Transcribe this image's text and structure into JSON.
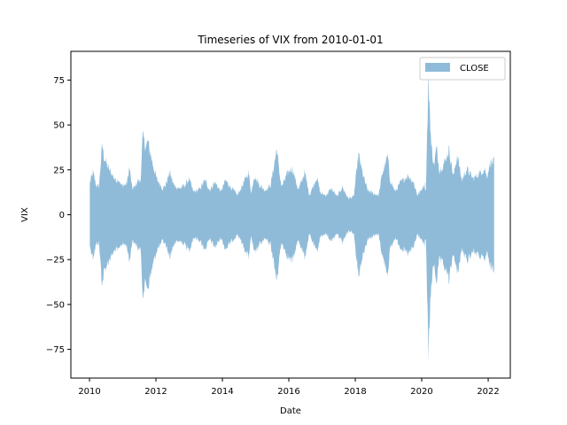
{
  "chart_data": {
    "type": "area",
    "title": "Timeseries of VIX from 2010-01-01",
    "xlabel": "Date",
    "ylabel": "VIX",
    "xlim": [
      "2009-06-10",
      "2022-09-01"
    ],
    "ylim": [
      -91,
      91
    ],
    "x_ticks": [
      "2010",
      "2012",
      "2014",
      "2016",
      "2018",
      "2020",
      "2022"
    ],
    "y_ticks": [
      -75,
      -50,
      -25,
      0,
      25,
      50,
      75
    ],
    "legend_position": "top-right",
    "grid": false,
    "series": [
      {
        "name": "CLOSE",
        "color": "#1f77b4",
        "opacity": 0.5,
        "mirrored": true,
        "points": [
          [
            "2010-01-04",
            19
          ],
          [
            "2010-02-08",
            26
          ],
          [
            "2010-03-15",
            18
          ],
          [
            "2010-04-15",
            17
          ],
          [
            "2010-05-20",
            43
          ],
          [
            "2010-06-10",
            35
          ],
          [
            "2010-07-15",
            30
          ],
          [
            "2010-08-20",
            26
          ],
          [
            "2010-09-15",
            24
          ],
          [
            "2010-10-15",
            21
          ],
          [
            "2010-11-15",
            22
          ],
          [
            "2010-12-15",
            18
          ],
          [
            "2011-01-15",
            18
          ],
          [
            "2011-02-15",
            19
          ],
          [
            "2011-03-16",
            29
          ],
          [
            "2011-04-15",
            16
          ],
          [
            "2011-05-15",
            17
          ],
          [
            "2011-06-15",
            21
          ],
          [
            "2011-07-15",
            20
          ],
          [
            "2011-08-08",
            48
          ],
          [
            "2011-09-15",
            41
          ],
          [
            "2011-10-03",
            45
          ],
          [
            "2011-11-15",
            34
          ],
          [
            "2011-12-15",
            27
          ],
          [
            "2012-01-15",
            21
          ],
          [
            "2012-02-15",
            19
          ],
          [
            "2012-03-15",
            16
          ],
          [
            "2012-04-15",
            18
          ],
          [
            "2012-06-01",
            26
          ],
          [
            "2012-07-15",
            18
          ],
          [
            "2012-09-15",
            16
          ],
          [
            "2012-11-15",
            18
          ],
          [
            "2012-12-31",
            22
          ],
          [
            "2013-02-15",
            14
          ],
          [
            "2013-04-15",
            15
          ],
          [
            "2013-06-24",
            21
          ],
          [
            "2013-08-15",
            15
          ],
          [
            "2013-10-10",
            20
          ],
          [
            "2013-12-15",
            14
          ],
          [
            "2014-02-04",
            21
          ],
          [
            "2014-04-15",
            16
          ],
          [
            "2014-06-15",
            12
          ],
          [
            "2014-08-01",
            17
          ],
          [
            "2014-10-15",
            26
          ],
          [
            "2014-11-15",
            13
          ],
          [
            "2014-12-16",
            24
          ],
          [
            "2015-02-15",
            18
          ],
          [
            "2015-04-15",
            15
          ],
          [
            "2015-06-15",
            18
          ],
          [
            "2015-08-24",
            41
          ],
          [
            "2015-09-15",
            27
          ],
          [
            "2015-10-15",
            17
          ],
          [
            "2015-12-15",
            25
          ],
          [
            "2016-01-20",
            28
          ],
          [
            "2016-02-11",
            28
          ],
          [
            "2016-04-15",
            15
          ],
          [
            "2016-06-24",
            26
          ],
          [
            "2016-08-15",
            12
          ],
          [
            "2016-11-04",
            23
          ],
          [
            "2016-12-15",
            13
          ],
          [
            "2017-02-15",
            12
          ],
          [
            "2017-04-13",
            16
          ],
          [
            "2017-06-15",
            11
          ],
          [
            "2017-08-10",
            17
          ],
          [
            "2017-10-15",
            10
          ],
          [
            "2017-12-15",
            11
          ],
          [
            "2018-02-05",
            37
          ],
          [
            "2018-03-23",
            25
          ],
          [
            "2018-05-15",
            15
          ],
          [
            "2018-07-15",
            13
          ],
          [
            "2018-09-15",
            12
          ],
          [
            "2018-10-24",
            25
          ],
          [
            "2018-12-24",
            36
          ],
          [
            "2019-01-15",
            22
          ],
          [
            "2019-03-15",
            14
          ],
          [
            "2019-05-15",
            20
          ],
          [
            "2019-08-05",
            24
          ],
          [
            "2019-10-02",
            20
          ],
          [
            "2019-11-15",
            12
          ],
          [
            "2019-12-15",
            14
          ],
          [
            "2020-01-31",
            19
          ],
          [
            "2020-02-15",
            14
          ],
          [
            "2020-03-16",
            83
          ],
          [
            "2020-04-15",
            42
          ],
          [
            "2020-05-15",
            30
          ],
          [
            "2020-06-11",
            41
          ],
          [
            "2020-07-15",
            27
          ],
          [
            "2020-09-08",
            32
          ],
          [
            "2020-10-28",
            40
          ],
          [
            "2020-12-15",
            23
          ],
          [
            "2021-01-27",
            37
          ],
          [
            "2021-03-15",
            21
          ],
          [
            "2021-05-12",
            28
          ],
          [
            "2021-07-19",
            22
          ],
          [
            "2021-09-20",
            25
          ],
          [
            "2021-11-26",
            28
          ],
          [
            "2021-12-15",
            23
          ],
          [
            "2022-01-24",
            32
          ],
          [
            "2022-02-24",
            32
          ],
          [
            "2022-03-07",
            33
          ]
        ]
      }
    ]
  }
}
